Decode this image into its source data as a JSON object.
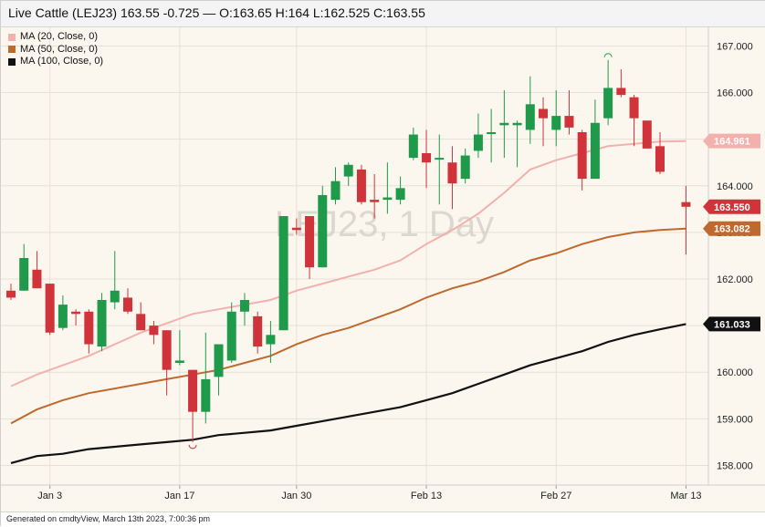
{
  "header": {
    "title": "Live Cattle (LEJ23) 163.55 -0.725 — O:163.65 H:164 L:162.525 C:163.55"
  },
  "footer": {
    "text": "Generated on cmdtyView, March 13th 2023, 7:00:36 pm"
  },
  "colors": {
    "background": "#fbf7ee",
    "up": "#1f9a4a",
    "down": "#d0343a",
    "ma20": "#f3b1ae",
    "ma50": "#c0692e",
    "ma100": "#111111"
  },
  "chart_data": {
    "type": "candlestick",
    "title": "Live Cattle (LEJ23)",
    "watermark": "LEJ23, 1 Day",
    "ylim": [
      157.5,
      167.4
    ],
    "yticks": [
      "158.000",
      "159.000",
      "160.000",
      "161.000",
      "162.000",
      "163.000",
      "164.000",
      "165.000",
      "166.000",
      "167.000"
    ],
    "ytick_values": [
      158,
      159,
      160,
      161,
      162,
      163,
      164,
      165,
      166,
      167
    ],
    "xtick_labels": [
      "Jan 3",
      "Jan 17",
      "Jan 30",
      "Feb 13",
      "Feb 27",
      "Mar 13"
    ],
    "xtick_index": [
      3,
      13,
      22,
      32,
      42,
      52
    ],
    "x_count": 54,
    "legend": [
      {
        "name": "MA (20, Close, 0)",
        "color": "#f3b1ae"
      },
      {
        "name": "MA (50, Close, 0)",
        "color": "#c0692e"
      },
      {
        "name": "MA (100, Close, 0)",
        "color": "#111111"
      }
    ],
    "candles": [
      {
        "i": 0,
        "o": 161.75,
        "h": 161.9,
        "l": 161.55,
        "c": 161.6
      },
      {
        "i": 1,
        "o": 161.75,
        "h": 162.75,
        "l": 161.75,
        "c": 162.45
      },
      {
        "i": 2,
        "o": 162.2,
        "h": 162.6,
        "l": 161.8,
        "c": 161.8
      },
      {
        "i": 3,
        "o": 161.9,
        "h": 161.9,
        "l": 160.8,
        "c": 160.85
      },
      {
        "i": 4,
        "o": 160.95,
        "h": 161.65,
        "l": 160.9,
        "c": 161.45
      },
      {
        "i": 5,
        "o": 161.3,
        "h": 161.35,
        "l": 161.0,
        "c": 161.25
      },
      {
        "i": 6,
        "o": 161.3,
        "h": 161.35,
        "l": 160.4,
        "c": 160.6
      },
      {
        "i": 7,
        "o": 160.55,
        "h": 161.7,
        "l": 160.45,
        "c": 161.55
      },
      {
        "i": 8,
        "o": 161.5,
        "h": 162.6,
        "l": 161.35,
        "c": 161.75
      },
      {
        "i": 9,
        "o": 161.6,
        "h": 161.8,
        "l": 161.25,
        "c": 161.3
      },
      {
        "i": 10,
        "o": 161.25,
        "h": 161.5,
        "l": 160.9,
        "c": 160.9
      },
      {
        "i": 11,
        "o": 161.0,
        "h": 161.1,
        "l": 160.6,
        "c": 160.8
      },
      {
        "i": 12,
        "o": 160.9,
        "h": 160.9,
        "l": 159.5,
        "c": 160.05
      },
      {
        "i": 13,
        "o": 160.2,
        "h": 160.9,
        "l": 160.15,
        "c": 160.25
      },
      {
        "i": 14,
        "o": 160.05,
        "h": 160.05,
        "l": 158.5,
        "c": 159.15
      },
      {
        "i": 15,
        "o": 159.15,
        "h": 160.85,
        "l": 158.9,
        "c": 159.85
      },
      {
        "i": 16,
        "o": 159.9,
        "h": 160.6,
        "l": 159.5,
        "c": 160.6
      },
      {
        "i": 17,
        "o": 160.25,
        "h": 161.5,
        "l": 160.2,
        "c": 161.3
      },
      {
        "i": 18,
        "o": 161.3,
        "h": 161.7,
        "l": 161.0,
        "c": 161.55
      },
      {
        "i": 19,
        "o": 161.2,
        "h": 161.3,
        "l": 160.4,
        "c": 160.55
      },
      {
        "i": 20,
        "o": 160.6,
        "h": 161.1,
        "l": 160.2,
        "c": 160.8
      },
      {
        "i": 21,
        "o": 160.9,
        "h": 163.35,
        "l": 160.9,
        "c": 163.35
      },
      {
        "i": 22,
        "o": 163.1,
        "h": 163.3,
        "l": 162.95,
        "c": 163.05
      },
      {
        "i": 23,
        "o": 163.35,
        "h": 163.35,
        "l": 162.0,
        "c": 162.25
      },
      {
        "i": 24,
        "o": 162.25,
        "h": 164.0,
        "l": 162.25,
        "c": 163.8
      },
      {
        "i": 25,
        "o": 163.7,
        "h": 164.4,
        "l": 163.6,
        "c": 164.1
      },
      {
        "i": 26,
        "o": 164.2,
        "h": 164.5,
        "l": 164.0,
        "c": 164.45
      },
      {
        "i": 27,
        "o": 164.35,
        "h": 164.45,
        "l": 163.6,
        "c": 163.65
      },
      {
        "i": 28,
        "o": 163.7,
        "h": 164.25,
        "l": 163.3,
        "c": 163.65
      },
      {
        "i": 29,
        "o": 163.7,
        "h": 164.5,
        "l": 163.4,
        "c": 163.75
      },
      {
        "i": 30,
        "o": 163.7,
        "h": 164.2,
        "l": 163.6,
        "c": 163.95
      },
      {
        "i": 31,
        "o": 164.6,
        "h": 165.25,
        "l": 164.55,
        "c": 165.1
      },
      {
        "i": 32,
        "o": 164.7,
        "h": 165.2,
        "l": 163.95,
        "c": 164.5
      },
      {
        "i": 33,
        "o": 164.6,
        "h": 165.1,
        "l": 163.6,
        "c": 164.6
      },
      {
        "i": 34,
        "o": 164.5,
        "h": 164.85,
        "l": 163.5,
        "c": 164.05
      },
      {
        "i": 35,
        "o": 164.15,
        "h": 164.8,
        "l": 164.05,
        "c": 164.65
      },
      {
        "i": 36,
        "o": 164.75,
        "h": 165.55,
        "l": 164.6,
        "c": 165.1
      },
      {
        "i": 37,
        "o": 165.15,
        "h": 165.65,
        "l": 164.5,
        "c": 165.15
      },
      {
        "i": 38,
        "o": 165.3,
        "h": 166.05,
        "l": 164.6,
        "c": 165.35
      },
      {
        "i": 39,
        "o": 165.3,
        "h": 165.4,
        "l": 164.4,
        "c": 165.35
      },
      {
        "i": 40,
        "o": 165.2,
        "h": 166.35,
        "l": 164.9,
        "c": 165.75
      },
      {
        "i": 41,
        "o": 165.65,
        "h": 165.9,
        "l": 164.85,
        "c": 165.45
      },
      {
        "i": 42,
        "o": 165.2,
        "h": 166.05,
        "l": 164.85,
        "c": 165.5
      },
      {
        "i": 43,
        "o": 165.5,
        "h": 166.05,
        "l": 165.1,
        "c": 165.25
      },
      {
        "i": 44,
        "o": 165.15,
        "h": 165.2,
        "l": 163.9,
        "c": 164.15
      },
      {
        "i": 45,
        "o": 164.15,
        "h": 165.85,
        "l": 164.15,
        "c": 165.35
      },
      {
        "i": 46,
        "o": 165.45,
        "h": 166.7,
        "l": 165.3,
        "c": 166.1
      },
      {
        "i": 47,
        "o": 166.1,
        "h": 166.5,
        "l": 165.9,
        "c": 165.95
      },
      {
        "i": 48,
        "o": 165.9,
        "h": 165.95,
        "l": 164.85,
        "c": 165.45
      },
      {
        "i": 49,
        "o": 165.4,
        "h": 165.4,
        "l": 164.8,
        "c": 164.8
      },
      {
        "i": 50,
        "o": 164.85,
        "h": 165.15,
        "l": 164.25,
        "c": 164.3
      },
      {
        "i": 52,
        "o": 163.65,
        "h": 164.0,
        "l": 162.525,
        "c": 163.55
      }
    ],
    "ma20": [
      [
        0,
        159.7
      ],
      [
        2,
        159.95
      ],
      [
        4,
        160.15
      ],
      [
        6,
        160.35
      ],
      [
        8,
        160.6
      ],
      [
        10,
        160.85
      ],
      [
        12,
        161.05
      ],
      [
        14,
        161.25
      ],
      [
        16,
        161.35
      ],
      [
        18,
        161.45
      ],
      [
        20,
        161.55
      ],
      [
        22,
        161.75
      ],
      [
        24,
        161.9
      ],
      [
        26,
        162.05
      ],
      [
        28,
        162.2
      ],
      [
        30,
        162.4
      ],
      [
        32,
        162.75
      ],
      [
        34,
        163.05
      ],
      [
        36,
        163.4
      ],
      [
        38,
        163.85
      ],
      [
        40,
        164.35
      ],
      [
        42,
        164.55
      ],
      [
        44,
        164.7
      ],
      [
        46,
        164.85
      ],
      [
        48,
        164.9
      ],
      [
        50,
        164.95
      ],
      [
        52,
        164.961
      ]
    ],
    "ma50": [
      [
        0,
        158.9
      ],
      [
        2,
        159.2
      ],
      [
        4,
        159.4
      ],
      [
        6,
        159.55
      ],
      [
        8,
        159.65
      ],
      [
        10,
        159.75
      ],
      [
        12,
        159.85
      ],
      [
        14,
        159.95
      ],
      [
        16,
        160.05
      ],
      [
        18,
        160.2
      ],
      [
        20,
        160.35
      ],
      [
        22,
        160.6
      ],
      [
        24,
        160.8
      ],
      [
        26,
        160.95
      ],
      [
        28,
        161.15
      ],
      [
        30,
        161.35
      ],
      [
        32,
        161.6
      ],
      [
        34,
        161.8
      ],
      [
        36,
        161.95
      ],
      [
        38,
        162.15
      ],
      [
        40,
        162.4
      ],
      [
        42,
        162.55
      ],
      [
        44,
        162.75
      ],
      [
        46,
        162.9
      ],
      [
        48,
        163.0
      ],
      [
        50,
        163.05
      ],
      [
        52,
        163.082
      ]
    ],
    "ma100": [
      [
        0,
        158.05
      ],
      [
        2,
        158.2
      ],
      [
        4,
        158.25
      ],
      [
        6,
        158.35
      ],
      [
        8,
        158.4
      ],
      [
        10,
        158.45
      ],
      [
        12,
        158.5
      ],
      [
        14,
        158.55
      ],
      [
        16,
        158.65
      ],
      [
        18,
        158.7
      ],
      [
        20,
        158.75
      ],
      [
        22,
        158.85
      ],
      [
        24,
        158.95
      ],
      [
        26,
        159.05
      ],
      [
        28,
        159.15
      ],
      [
        30,
        159.25
      ],
      [
        32,
        159.4
      ],
      [
        34,
        159.55
      ],
      [
        36,
        159.75
      ],
      [
        38,
        159.95
      ],
      [
        40,
        160.15
      ],
      [
        42,
        160.3
      ],
      [
        44,
        160.45
      ],
      [
        46,
        160.65
      ],
      [
        48,
        160.8
      ],
      [
        50,
        160.92
      ],
      [
        52,
        161.033
      ]
    ],
    "price_labels": [
      {
        "series": "ma20",
        "value": 164.961,
        "text": "164.961"
      },
      {
        "series": "last",
        "value": 163.55,
        "text": "163.550"
      },
      {
        "series": "ma50",
        "value": 163.082,
        "text": "163.082"
      },
      {
        "series": "ma100",
        "value": 161.033,
        "text": "161.033"
      }
    ]
  }
}
